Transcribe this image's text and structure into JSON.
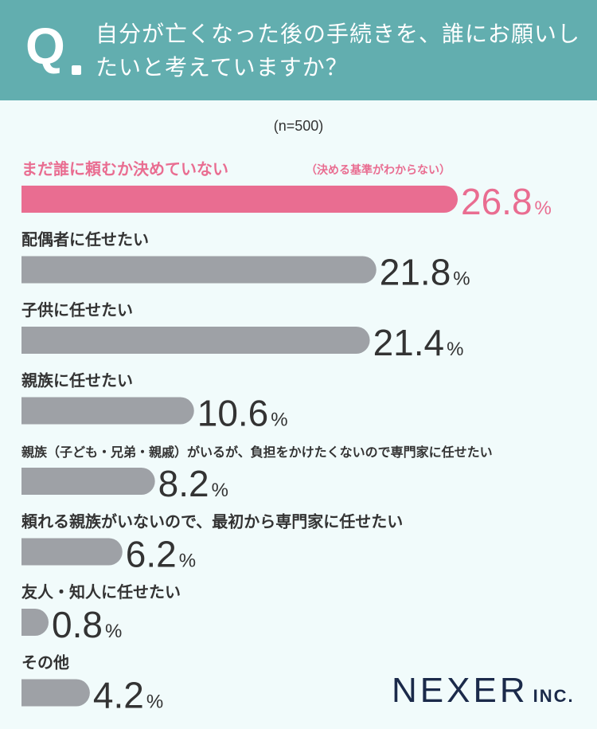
{
  "question": {
    "mark": "Q",
    "text": "自分が亡くなった後の手続きを、誰にお願いしたいと考えていますか？"
  },
  "sample_size": "(n=500)",
  "brand": {
    "name": "NEXER",
    "suffix": "INC."
  },
  "colors": {
    "header": "#62aeaf",
    "background": "#f1fbfb",
    "highlight": "#e96d91",
    "bar": "#9ea1a6",
    "text": "#333333",
    "brand": "#1b2a4a"
  },
  "chart_data": {
    "type": "bar",
    "orientation": "horizontal",
    "unit": "%",
    "categories": [
      "まだ誰に頼むか決めていない",
      "配偶者に任せたい",
      "子供に任せたい",
      "親族に任せたい",
      "親族（子ども・兄弟・親戚）がいるが、負担をかけたくないので専門家に任せたい",
      "頼れる親族がいないので、最初から専門家に任せたい",
      "友人・知人に任せたい",
      "その他"
    ],
    "notes": [
      "（決める基準がわからない）",
      "",
      "",
      "",
      "",
      "",
      "",
      ""
    ],
    "values": [
      26.8,
      21.8,
      21.4,
      10.6,
      8.2,
      6.2,
      0.8,
      4.2
    ],
    "value_labels": [
      "26.8",
      "21.8",
      "21.4",
      "10.6",
      "8.2",
      "6.2",
      "0.8",
      "4.2"
    ],
    "highlight_index": 0,
    "xlim": [
      0,
      26.8
    ],
    "grid": false,
    "legend": "none"
  }
}
